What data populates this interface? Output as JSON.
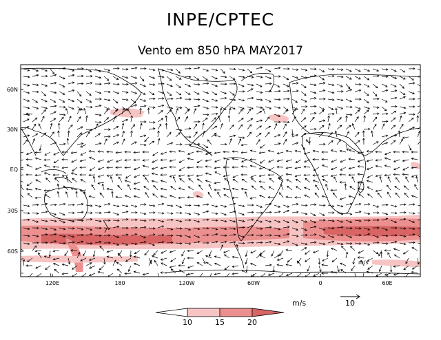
{
  "title": "INPE/CPTEC",
  "subtitle": "Vento em 850 hPA MAY2017",
  "lat_ticks": [
    "60N",
    "30N",
    "EQ",
    "30S",
    "60S"
  ],
  "lon_ticks": [
    "120E",
    "180",
    "120W",
    "60W",
    "0",
    "60E"
  ],
  "colorbar": {
    "unit": "m/s",
    "levels": [
      "10",
      "15",
      "20"
    ],
    "colors": [
      "#ffffff",
      "#f7c4c4",
      "#ec8f8f",
      "#d86464"
    ]
  },
  "reference_vector": {
    "label": "10"
  },
  "inset_label": "m/s",
  "colors": {
    "shade_light": "#f7c4c4",
    "shade_mid": "#ec8f8f",
    "shade_dark": "#d86464"
  }
}
